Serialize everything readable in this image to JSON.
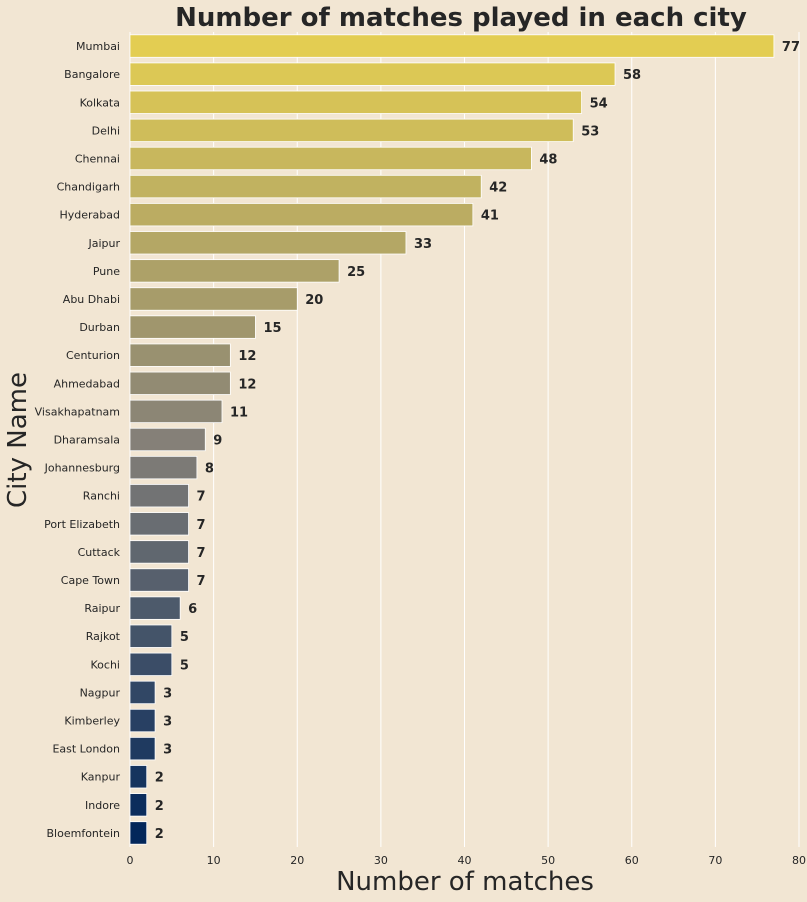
{
  "chart_data": {
    "type": "bar",
    "orientation": "horizontal",
    "title": "Number of matches played in each city",
    "xlabel": "Number of matches",
    "ylabel": "City Name",
    "xlim": [
      0,
      80
    ],
    "xticks": [
      0,
      10,
      20,
      30,
      40,
      50,
      60,
      70,
      80
    ],
    "grid": true,
    "categories": [
      "Mumbai",
      "Bangalore",
      "Kolkata",
      "Delhi",
      "Chennai",
      "Chandigarh",
      "Hyderabad",
      "Jaipur",
      "Pune",
      "Abu Dhabi",
      "Durban",
      "Centurion",
      "Ahmedabad",
      "Visakhapatnam",
      "Dharamsala",
      "Johannesburg",
      "Ranchi",
      "Port Elizabeth",
      "Cuttack",
      "Cape Town",
      "Raipur",
      "Rajkot",
      "Kochi",
      "Nagpur",
      "Kimberley",
      "East London",
      "Kanpur",
      "Indore",
      "Bloemfontein"
    ],
    "values": [
      77,
      58,
      54,
      53,
      48,
      42,
      41,
      33,
      25,
      20,
      15,
      12,
      12,
      11,
      9,
      8,
      7,
      7,
      7,
      7,
      6,
      5,
      5,
      3,
      3,
      3,
      2,
      2,
      2
    ],
    "palette": "cividis (reversed: yellow top to dark blue bottom)",
    "colors": {
      "top": "#e3cd52",
      "bottom": "#03275a",
      "background": "#f2e6d3",
      "grid": "#ffffff"
    }
  }
}
